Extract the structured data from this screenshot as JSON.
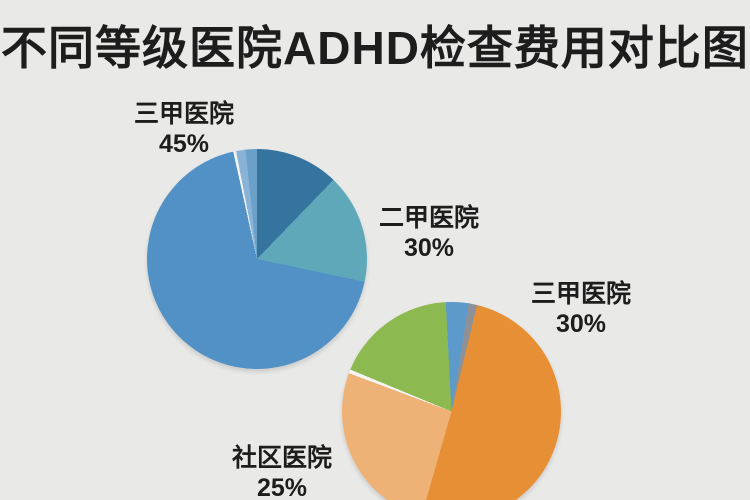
{
  "title": "不同等级医院ADHD检查费用对比图",
  "background_color": "#e9e9e8",
  "text_color": "#1d1d1d",
  "chart_data": [
    {
      "type": "pie",
      "name": "blue-pie-top-left",
      "legend_position": "none",
      "labels": [
        "三甲医院",
        "二甲医院"
      ],
      "values": [
        45,
        30
      ],
      "callouts": [
        {
          "name": "三甲医院",
          "value_label": "45%"
        },
        {
          "name": "二甲医院",
          "value_label": "30%"
        }
      ],
      "segments": [
        {
          "color": "#35749f",
          "from_deg": 0,
          "to_deg": 44
        },
        {
          "color": "#5fa8b9",
          "from_deg": 44,
          "to_deg": 102
        },
        {
          "color": "#5191c6",
          "from_deg": 102,
          "to_deg": 347.5
        },
        {
          "color": "#f2f3f2",
          "from_deg": 347.5,
          "to_deg": 349
        },
        {
          "color": "#89b3d6",
          "from_deg": 349,
          "to_deg": 354
        },
        {
          "color": "#6ba1c9",
          "from_deg": 354,
          "to_deg": 360
        }
      ]
    },
    {
      "type": "pie",
      "name": "orange-pie-bottom-right",
      "legend_position": "none",
      "labels": [
        "三甲医院",
        "社区医院"
      ],
      "values": [
        30,
        25
      ],
      "callouts": [
        {
          "name": "三甲医院",
          "value_label": "30%"
        },
        {
          "name": "社区医院",
          "value_label": "25%"
        }
      ],
      "segments": [
        {
          "color": "#5b9aca",
          "from_deg": 0,
          "to_deg": 9
        },
        {
          "color": "#8e9297",
          "from_deg": 9,
          "to_deg": 13.5
        },
        {
          "color": "#e78f35",
          "from_deg": 13.5,
          "to_deg": 196
        },
        {
          "color": "#eeb277",
          "from_deg": 196,
          "to_deg": 290.5
        },
        {
          "color": "#f5f5f3",
          "from_deg": 290.5,
          "to_deg": 292.5
        },
        {
          "color": "#8cba50",
          "from_deg": 292.5,
          "to_deg": 357
        },
        {
          "color": "#5b9aca",
          "from_deg": 357,
          "to_deg": 360
        }
      ]
    }
  ]
}
